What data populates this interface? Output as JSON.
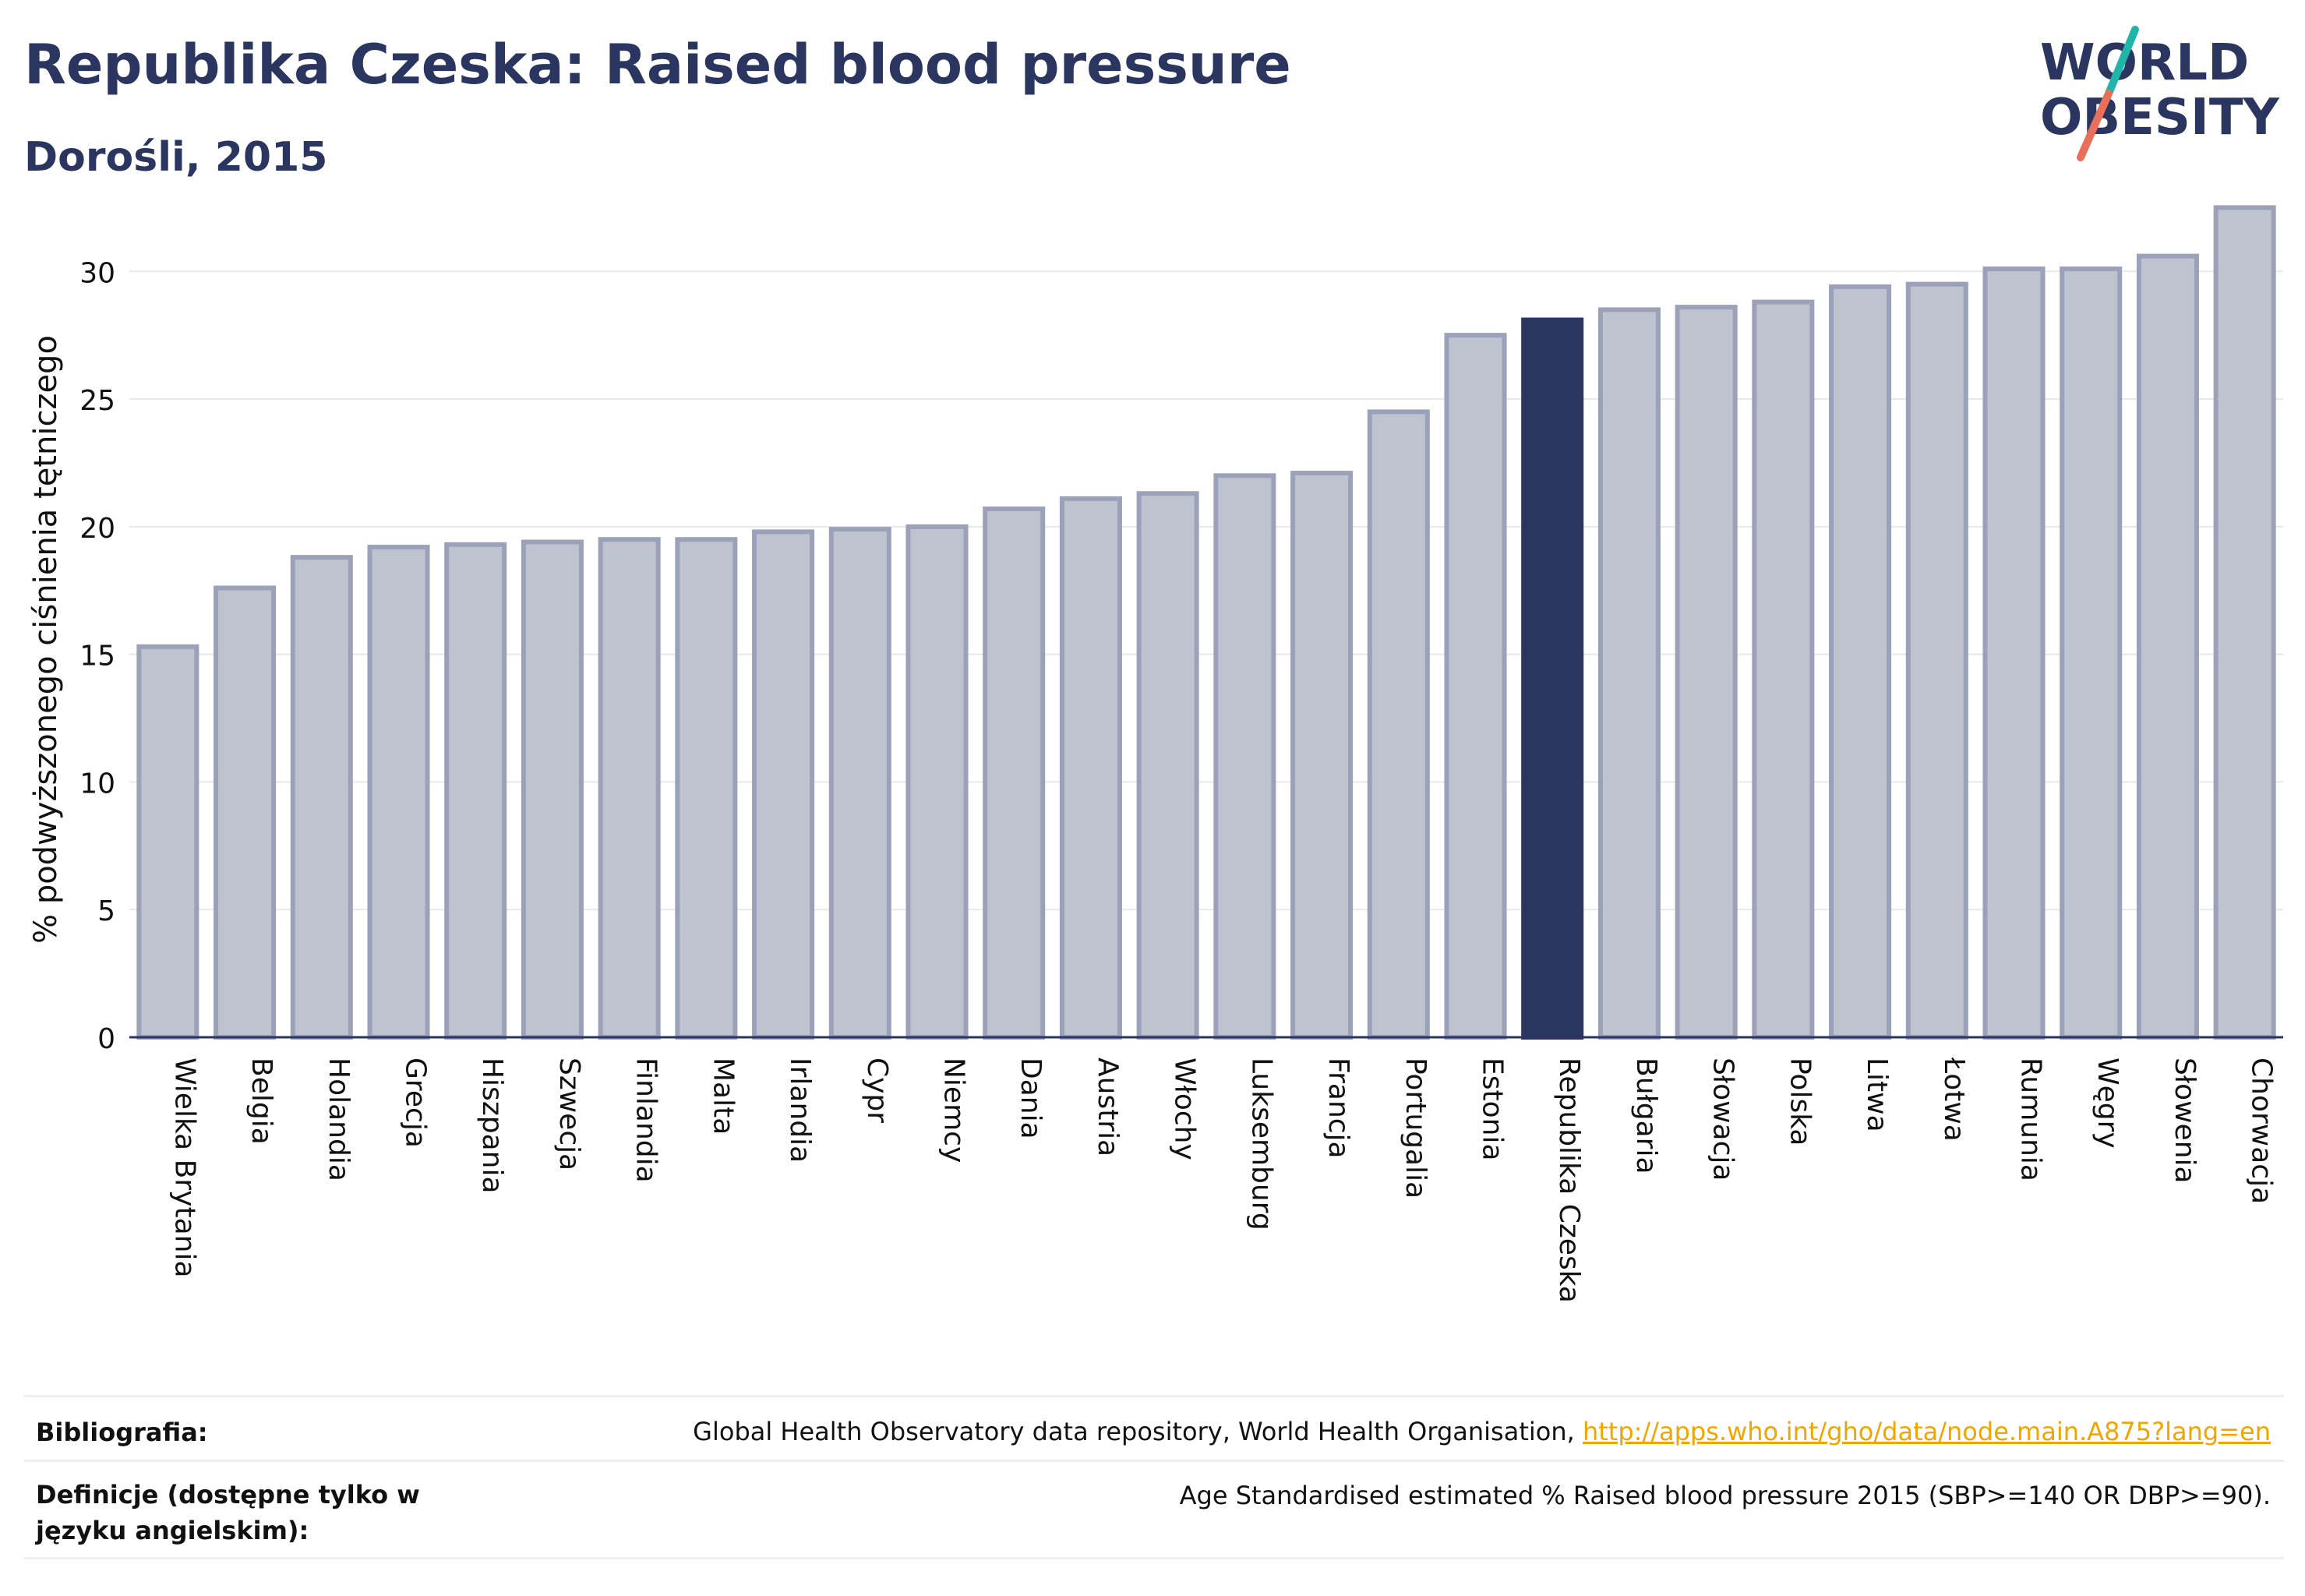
{
  "header": {
    "title": "Republika Czeska: Raised blood pressure",
    "subtitle": "Dorośli, 2015"
  },
  "logo": {
    "line1": "WORLD",
    "line2": "OBESITY"
  },
  "colors": {
    "bar": "#bfc3d0",
    "bar_border": "#9aa1b8",
    "highlight": "#2a3560",
    "text": "#2a3560",
    "link": "#f0a500",
    "logo_slash_top": "#1fb5a8",
    "logo_slash_bottom": "#e8705a"
  },
  "chart_data": {
    "type": "bar",
    "title": "Republika Czeska: Raised blood pressure",
    "subtitle": "Dorośli, 2015",
    "xlabel": "",
    "ylabel": "% podwyższonego ciśnienia tętniczego",
    "ylim": [
      0,
      33
    ],
    "yticks": [
      0,
      5,
      10,
      15,
      20,
      25,
      30
    ],
    "grid": true,
    "highlight": "Republika Czeska",
    "categories": [
      "Wielka Brytania",
      "Belgia",
      "Holandia",
      "Grecja",
      "Hiszpania",
      "Szwecja",
      "Finlandia",
      "Malta",
      "Irlandia",
      "Cypr",
      "Niemcy",
      "Dania",
      "Austria",
      "Włochy",
      "Luksemburg",
      "Francja",
      "Portugalia",
      "Estonia",
      "Republika Czeska",
      "Bułgaria",
      "Słowacja",
      "Polska",
      "Litwa",
      "Łotwa",
      "Rumunia",
      "Węgry",
      "Słowenia",
      "Chorwacja"
    ],
    "values": [
      15.3,
      17.6,
      18.8,
      19.2,
      19.3,
      19.4,
      19.5,
      19.5,
      19.8,
      19.9,
      20.0,
      20.7,
      21.1,
      21.3,
      22.0,
      22.1,
      24.5,
      27.5,
      28.1,
      28.5,
      28.6,
      28.8,
      29.4,
      29.5,
      30.1,
      30.1,
      30.6,
      32.5
    ]
  },
  "footer": {
    "bibliography_label": "Bibliografia:",
    "bibliography_text": "Global Health Observatory data repository, World Health Organisation, ",
    "bibliography_link": "http://apps.who.int/gho/data/node.main.A875?lang=en",
    "definition_label": "Definicje (dostępne tylko w języku angielskim):",
    "definition_text": "Age Standardised estimated % Raised blood pressure 2015 (SBP>=140 OR DBP>=90)."
  }
}
